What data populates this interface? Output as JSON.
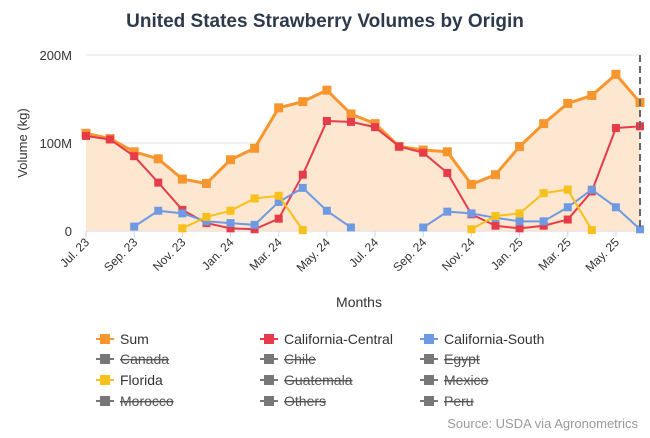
{
  "chart_data": {
    "type": "line",
    "title": "United States Strawberry Volumes by Origin",
    "xlabel": "Months",
    "ylabel": "Volume (kg)",
    "ylim": [
      0,
      200
    ],
    "y_unit": "M",
    "yticks": [
      {
        "value": 0,
        "label": "0"
      },
      {
        "value": 100,
        "label": "100M"
      },
      {
        "value": 200,
        "label": "200M"
      }
    ],
    "months": [
      "Jul 23",
      "Aug 23",
      "Sep 23",
      "Oct 23",
      "Nov 23",
      "Dec 23",
      "Jan 24",
      "Feb 24",
      "Mar 24",
      "Apr 24",
      "May 24",
      "Jun 24",
      "Jul 24",
      "Aug 24",
      "Sep 24",
      "Oct 24",
      "Nov 24",
      "Dec 24",
      "Jan 25",
      "Feb 25",
      "Mar 25",
      "Apr 25",
      "May 25",
      "Jun 25"
    ],
    "xticks": [
      {
        "index": 0,
        "label": "Jul. 23"
      },
      {
        "index": 2,
        "label": "Sep. 23"
      },
      {
        "index": 4,
        "label": "Nov. 23"
      },
      {
        "index": 6,
        "label": "Jan. 24"
      },
      {
        "index": 8,
        "label": "Mar. 24"
      },
      {
        "index": 10,
        "label": "May. 24"
      },
      {
        "index": 12,
        "label": "Jul. 24"
      },
      {
        "index": 14,
        "label": "Sep. 24"
      },
      {
        "index": 16,
        "label": "Nov. 24"
      },
      {
        "index": 18,
        "label": "Jan. 25"
      },
      {
        "index": 20,
        "label": "Mar. 25"
      },
      {
        "index": 22,
        "label": "May. 25"
      }
    ],
    "marker_index": 23,
    "series": [
      {
        "name": "Sum",
        "color": "#f7962e",
        "visible": true,
        "fill": true,
        "values": [
          111,
          105,
          90,
          82,
          59,
          54,
          81,
          94,
          140,
          147,
          160,
          133,
          122,
          96,
          92,
          90,
          53,
          64,
          96,
          122,
          145,
          154,
          178,
          146
        ]
      },
      {
        "name": "California-Central",
        "color": "#e63b4a",
        "visible": true,
        "values": [
          108,
          104,
          85,
          55,
          24,
          9,
          3,
          2,
          14,
          64,
          125,
          124,
          118,
          96,
          89,
          66,
          19,
          6,
          3,
          6,
          13,
          45,
          117,
          119
        ]
      },
      {
        "name": "California-South",
        "color": "#6f9ae3",
        "visible": true,
        "values": [
          null,
          null,
          5,
          23,
          20,
          11,
          9,
          7,
          33,
          49,
          23,
          4,
          null,
          null,
          4,
          22,
          20,
          15,
          11,
          11,
          27,
          47,
          27,
          2
        ]
      },
      {
        "name": "Canada",
        "color": "#777777",
        "visible": false,
        "values": []
      },
      {
        "name": "Chile",
        "color": "#777777",
        "visible": false,
        "values": []
      },
      {
        "name": "Egypt",
        "color": "#777777",
        "visible": false,
        "values": []
      },
      {
        "name": "Florida",
        "color": "#f7c01a",
        "visible": true,
        "values": [
          null,
          null,
          null,
          null,
          3,
          16,
          23,
          37,
          40,
          1,
          null,
          null,
          null,
          null,
          null,
          null,
          2,
          17,
          20,
          43,
          47,
          1,
          null,
          null
        ]
      },
      {
        "name": "Guatemala",
        "color": "#777777",
        "visible": false,
        "values": []
      },
      {
        "name": "Mexico",
        "color": "#777777",
        "visible": false,
        "values": []
      },
      {
        "name": "Morocco",
        "color": "#777777",
        "visible": false,
        "values": []
      },
      {
        "name": "Others",
        "color": "#777777",
        "visible": false,
        "values": []
      },
      {
        "name": "Peru",
        "color": "#777777",
        "visible": false,
        "values": []
      }
    ],
    "source": "Source: USDA via Agronometrics"
  }
}
